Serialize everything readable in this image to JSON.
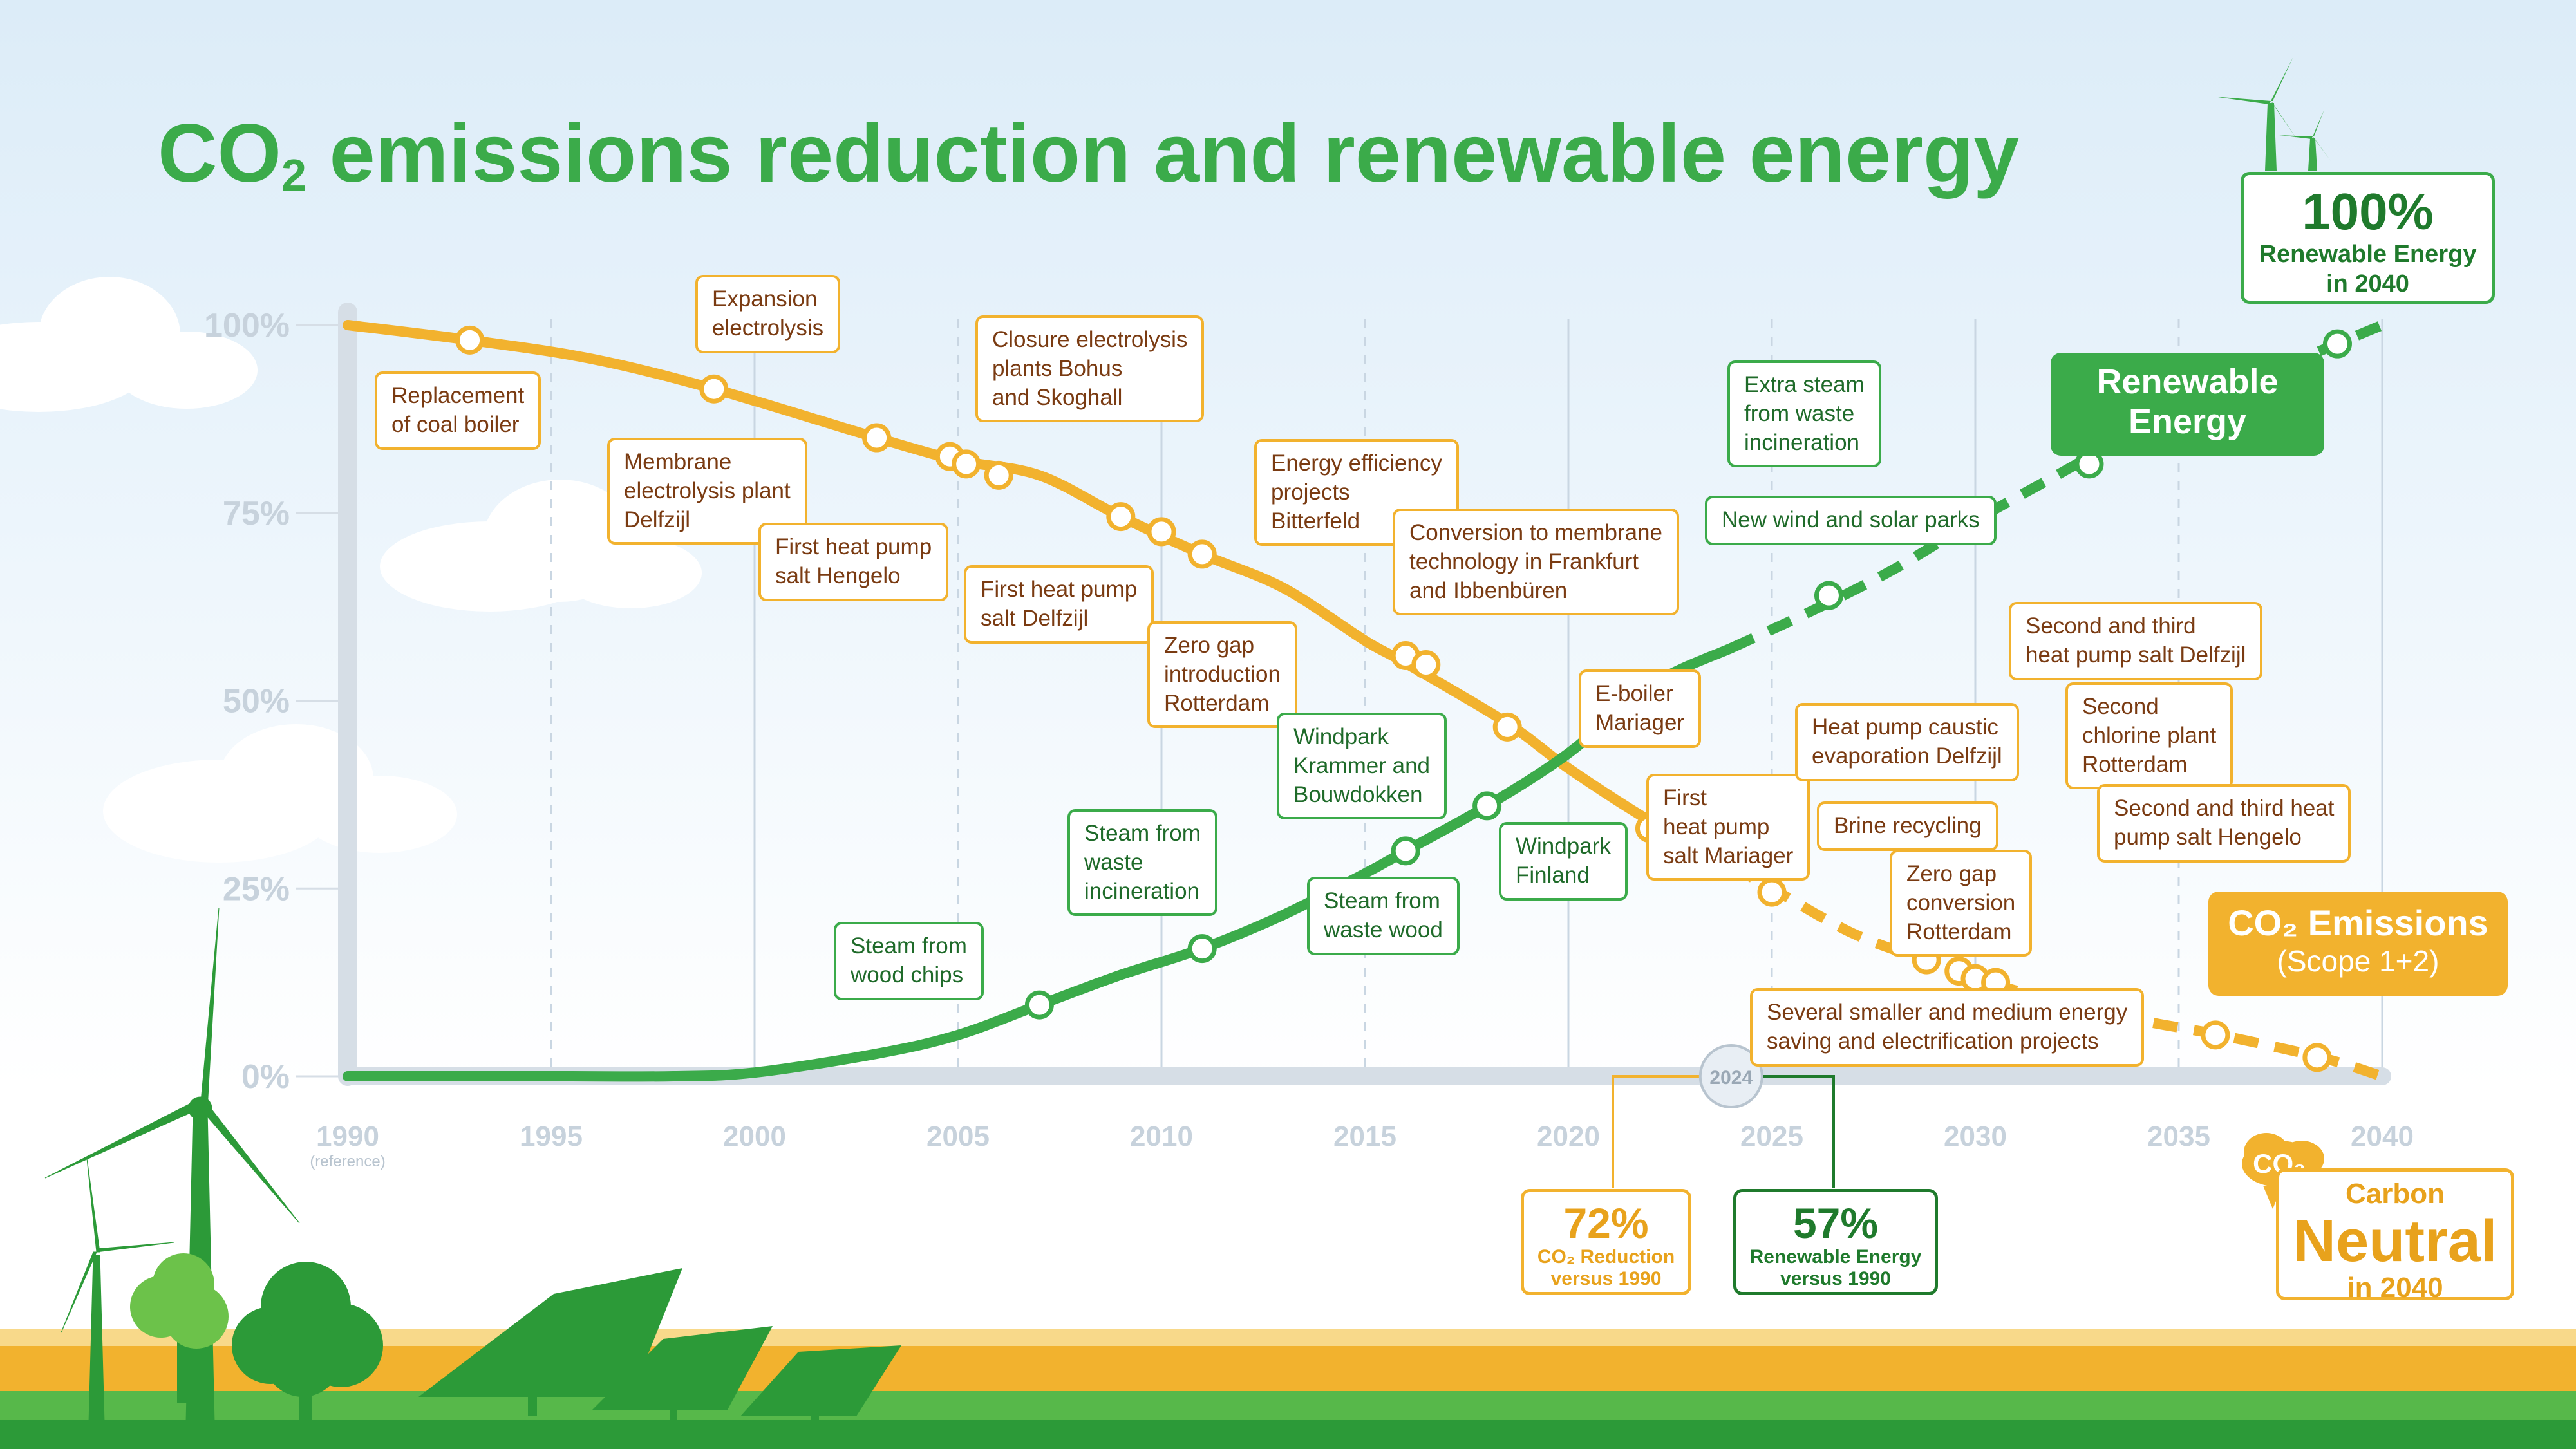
{
  "title_main": "CO",
  "title_sub": "2",
  "title_rest": " emissions reduction and renewable energy",
  "colors": {
    "co2": "#f2b22e",
    "renewable": "#3bab4a",
    "dark_green": "#1f7a2c",
    "axis": "#d6dee6"
  },
  "legend": {
    "renewable": "Renewable Energy",
    "co2_title": "CO₂ Emissions",
    "co2_sub": "(Scope 1+2)"
  },
  "badges": {
    "ren100_big": "100%",
    "ren100_small1": "Renewable Energy",
    "ren100_small2": "in 2040",
    "co2_reduction_value": "72%",
    "co2_reduction_label1": "CO₂ Reduction",
    "co2_reduction_label2": "versus 1990",
    "renewable_value": "57%",
    "renewable_label1": "Renewable Energy",
    "renewable_label2": "versus 1990",
    "carbon": "Carbon",
    "neutral": "Neutral",
    "neutral_year": "in 2040",
    "co2_icon": "CO₂",
    "year_marker": "2024",
    "reference_note": "(reference)"
  },
  "chart_data": {
    "type": "line",
    "x_ticks": [
      "1990",
      "1995",
      "2000",
      "2005",
      "2010",
      "2015",
      "2020",
      "2025",
      "2030",
      "2035",
      "2040"
    ],
    "y_ticks": [
      "0%",
      "25%",
      "50%",
      "75%",
      "100%"
    ],
    "xlim": [
      1990,
      2040
    ],
    "ylim": [
      0,
      100
    ],
    "series": [
      {
        "name": "CO₂ Emissions",
        "color": "#f2b22e",
        "actual": [
          [
            1990,
            100
          ],
          [
            1993,
            98
          ],
          [
            1996,
            95.5
          ],
          [
            1999,
            91.5
          ],
          [
            2003,
            85
          ],
          [
            2005,
            82
          ],
          [
            2007,
            80
          ],
          [
            2009,
            74.5
          ],
          [
            2011,
            69.5
          ],
          [
            2013,
            65
          ],
          [
            2015,
            58
          ],
          [
            2016,
            55
          ],
          [
            2018.5,
            47
          ],
          [
            2020,
            41
          ],
          [
            2022,
            34
          ],
          [
            2024,
            28
          ]
        ],
        "projected": [
          [
            2024,
            28
          ],
          [
            2025,
            25
          ],
          [
            2027,
            19
          ],
          [
            2029,
            15
          ],
          [
            2030.3,
            12.5
          ],
          [
            2032,
            10
          ],
          [
            2034,
            7.5
          ],
          [
            2036,
            5.5
          ],
          [
            2038.5,
            2.5
          ],
          [
            2040,
            0
          ]
        ],
        "markers": [
          1993,
          1999,
          2003,
          2004.8,
          2005.2,
          2006,
          2009,
          2010,
          2011,
          2016,
          2016.5,
          2018.5,
          2022
        ],
        "marker_values": [
          98,
          91.5,
          85,
          82.5,
          81.5,
          80,
          74.5,
          72.5,
          69.5,
          56,
          54.8,
          46.5,
          33
        ],
        "proj_markers": [
          2025,
          2028.8,
          2029.6,
          2030,
          2030.5,
          2035.9,
          2038.4
        ],
        "proj_marker_values": [
          24.5,
          15.5,
          14,
          13,
          12.5,
          5.5,
          2.5
        ]
      },
      {
        "name": "Renewable Energy",
        "color": "#3bab4a",
        "actual": [
          [
            1990,
            0
          ],
          [
            1995,
            0
          ],
          [
            1998,
            0
          ],
          [
            2000,
            0.5
          ],
          [
            2003,
            3
          ],
          [
            2005,
            5.5
          ],
          [
            2007,
            9.5
          ],
          [
            2009,
            13.5
          ],
          [
            2011,
            17
          ],
          [
            2013,
            21.5
          ],
          [
            2015,
            27
          ],
          [
            2016,
            30
          ],
          [
            2018,
            36
          ],
          [
            2020,
            43
          ],
          [
            2022,
            52
          ],
          [
            2024,
            57
          ]
        ],
        "projected": [
          [
            2024,
            57
          ],
          [
            2026,
            62
          ],
          [
            2028,
            67.5
          ],
          [
            2030,
            74
          ],
          [
            2032,
            80
          ],
          [
            2034,
            86
          ],
          [
            2036,
            91
          ],
          [
            2038,
            95.5
          ],
          [
            2040,
            100
          ]
        ],
        "markers": [
          2007,
          2011,
          2016,
          2018
        ],
        "marker_values": [
          9.5,
          17,
          30,
          36
        ],
        "proj_markers": [
          2026.4,
          2032.8,
          2038.9
        ],
        "proj_marker_values": [
          64,
          81.5,
          97.5
        ]
      }
    ],
    "annotations": {
      "co2": [
        {
          "text": [
            "Replacement",
            "of coal boiler"
          ]
        },
        {
          "text": [
            "Expansion",
            "electrolysis"
          ]
        },
        {
          "text": [
            "Membrane",
            "electrolysis plant",
            "Delfzijl"
          ]
        },
        {
          "text": [
            "Closure electrolysis",
            "plants Bohus",
            "and Skoghall"
          ]
        },
        {
          "text": [
            "First heat pump",
            "salt Hengelo"
          ]
        },
        {
          "text": [
            "First heat pump",
            "salt Delfzijl"
          ]
        },
        {
          "text": [
            "Zero gap",
            "introduction",
            "Rotterdam"
          ]
        },
        {
          "text": [
            "Energy efficiency",
            "projects",
            "Bitterfeld"
          ]
        },
        {
          "text": [
            "Conversion to membrane",
            "technology in Frankfurt",
            "and Ibbenbüren"
          ]
        },
        {
          "text": [
            "E-boiler",
            "Mariager"
          ]
        },
        {
          "text": [
            "First",
            "heat pump",
            "salt Mariager"
          ]
        },
        {
          "text": [
            "Heat pump caustic",
            "evaporation Delfzijl"
          ]
        },
        {
          "text": [
            "Brine recycling"
          ]
        },
        {
          "text": [
            "Zero gap",
            "conversion",
            "Rotterdam"
          ]
        },
        {
          "text": [
            "Second and third",
            "heat pump salt Delfzijl"
          ]
        },
        {
          "text": [
            "Second",
            "chlorine plant",
            "Rotterdam"
          ]
        },
        {
          "text": [
            "Second and third heat",
            "pump salt Hengelo"
          ]
        },
        {
          "text": [
            "Several smaller and medium energy",
            "saving and electrification projects"
          ]
        }
      ],
      "renewable": [
        {
          "text": [
            "Steam from",
            "wood chips"
          ]
        },
        {
          "text": [
            "Steam from",
            "waste",
            "incineration"
          ]
        },
        {
          "text": [
            "Windpark",
            "Krammer and",
            "Bouwdokken"
          ]
        },
        {
          "text": [
            "Steam from",
            "waste wood"
          ]
        },
        {
          "text": [
            "Windpark",
            "Finland"
          ]
        },
        {
          "text": [
            "Extra steam",
            "from waste",
            "incineration"
          ]
        },
        {
          "text": [
            "New wind and solar parks"
          ]
        }
      ]
    }
  }
}
